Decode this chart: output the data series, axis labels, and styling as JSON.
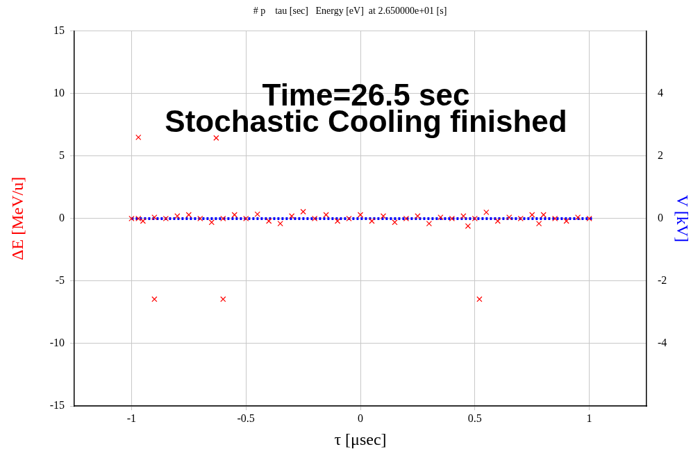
{
  "chart_data": {
    "type": "scatter",
    "title": "# p    tau [sec]   Energy [eV]  at 2.650000e+01 [s]",
    "xlabel": "τ [μsec]",
    "ylabel": "ΔE [MeV/u]",
    "y2label": "V [kV]",
    "annotations": [
      "Time=26.5 sec",
      "Stochastic Cooling finished"
    ],
    "xlim": [
      -1.25,
      1.25
    ],
    "xticks": [
      -1,
      -0.5,
      0,
      0.5,
      1
    ],
    "ylim": [
      -15,
      15
    ],
    "yticks": [
      -15,
      -10,
      -5,
      0,
      5,
      10,
      15
    ],
    "y2lim": [
      -6,
      6
    ],
    "y2ticks": [
      -4,
      -2,
      0,
      2,
      4
    ],
    "grid": true,
    "legend": false,
    "marker": "cross",
    "series": [
      {
        "color": "#ff0000",
        "x": [
          -1,
          -0.97,
          -0.97,
          -0.95,
          -0.9,
          -0.9,
          -0.85,
          -0.8,
          -0.75,
          -0.7,
          -0.65,
          -0.63,
          -0.6,
          -0.6,
          -0.55,
          -0.5,
          -0.45,
          -0.4,
          -0.35,
          -0.3,
          -0.25,
          -0.2,
          -0.15,
          -0.1,
          -0.05,
          0,
          0.05,
          0.1,
          0.15,
          0.2,
          0.25,
          0.3,
          0.35,
          0.4,
          0.45,
          0.47,
          0.5,
          0.52,
          0.55,
          0.6,
          0.65,
          0.7,
          0.75,
          0.78,
          0.8,
          0.85,
          0.9,
          0.95,
          1
        ],
        "values": [
          0,
          6.5,
          0,
          -0.2,
          -6.45,
          0.1,
          0,
          0.2,
          0.3,
          0,
          -0.3,
          6.45,
          -6.45,
          0,
          0.3,
          0,
          0.35,
          -0.2,
          -0.4,
          0.2,
          0.55,
          0,
          0.3,
          -0.2,
          0,
          0.3,
          -0.2,
          0.2,
          -0.3,
          0,
          0.2,
          -0.4,
          0.1,
          0,
          0.2,
          -0.6,
          0,
          -6.45,
          0.5,
          -0.2,
          0.1,
          0,
          0.3,
          -0.4,
          0.3,
          0,
          -0.2,
          0.1,
          0
        ]
      },
      {
        "type": "line",
        "axis": "y2",
        "color": "#0000ff",
        "line_style": "dotted",
        "marker": "none",
        "x": [
          -1,
          1.02
        ],
        "values": [
          0,
          0
        ]
      }
    ]
  }
}
